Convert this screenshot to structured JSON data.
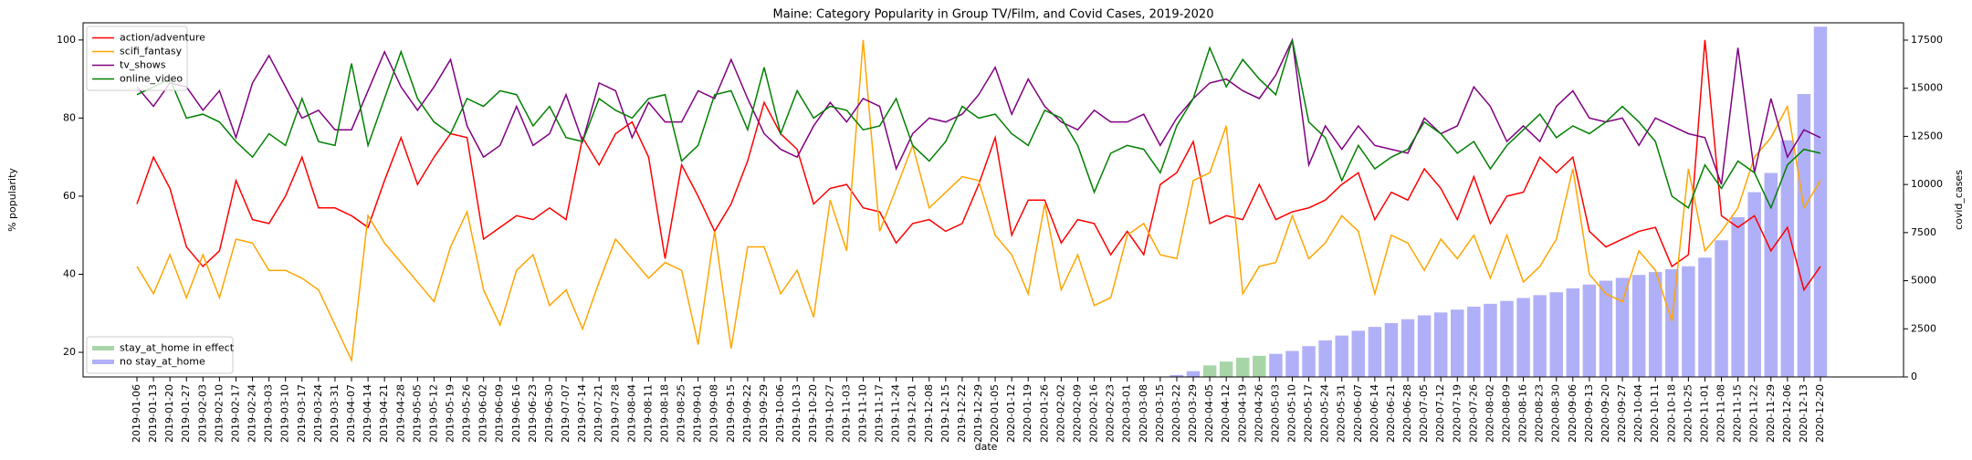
{
  "chart_data": {
    "type": "line",
    "title": "Maine: Category Popularity in Group TV/Film, and Covid Cases, 2019-2020",
    "x_label": "date",
    "y_label": "% popularity",
    "y2_label": "covid_cases",
    "categories": [
      "2019-01-06",
      "2019-01-13",
      "2019-01-20",
      "2019-01-27",
      "2019-02-03",
      "2019-02-10",
      "2019-02-17",
      "2019-02-24",
      "2019-03-03",
      "2019-03-10",
      "2019-03-17",
      "2019-03-24",
      "2019-03-31",
      "2019-04-07",
      "2019-04-14",
      "2019-04-21",
      "2019-04-28",
      "2019-05-05",
      "2019-05-12",
      "2019-05-19",
      "2019-05-26",
      "2019-06-02",
      "2019-06-09",
      "2019-06-16",
      "2019-06-23",
      "2019-06-30",
      "2019-07-07",
      "2019-07-14",
      "2019-07-21",
      "2019-07-28",
      "2019-08-04",
      "2019-08-11",
      "2019-08-18",
      "2019-08-25",
      "2019-09-01",
      "2019-09-08",
      "2019-09-15",
      "2019-09-22",
      "2019-09-29",
      "2019-10-06",
      "2019-10-13",
      "2019-10-20",
      "2019-10-27",
      "2019-11-03",
      "2019-11-10",
      "2019-11-17",
      "2019-11-24",
      "2019-12-01",
      "2019-12-08",
      "2019-12-15",
      "2019-12-22",
      "2019-12-29",
      "2020-01-05",
      "2020-01-12",
      "2020-01-19",
      "2020-01-26",
      "2020-02-02",
      "2020-02-09",
      "2020-02-16",
      "2020-02-23",
      "2020-03-01",
      "2020-03-08",
      "2020-03-15",
      "2020-03-22",
      "2020-03-29",
      "2020-04-05",
      "2020-04-12",
      "2020-04-19",
      "2020-04-26",
      "2020-05-03",
      "2020-05-10",
      "2020-05-17",
      "2020-05-24",
      "2020-05-31",
      "2020-06-07",
      "2020-06-14",
      "2020-06-21",
      "2020-06-28",
      "2020-07-05",
      "2020-07-12",
      "2020-07-19",
      "2020-07-26",
      "2020-08-02",
      "2020-08-09",
      "2020-08-16",
      "2020-08-23",
      "2020-08-30",
      "2020-09-06",
      "2020-09-13",
      "2020-09-20",
      "2020-09-27",
      "2020-10-04",
      "2020-10-11",
      "2020-10-18",
      "2020-10-25",
      "2020-11-01",
      "2020-11-08",
      "2020-11-15",
      "2020-11-22",
      "2020-11-29",
      "2020-12-06",
      "2020-12-13",
      "2020-12-20"
    ],
    "series": [
      {
        "name": "action/adventure",
        "color": "#ff0000",
        "type": "line",
        "values": [
          58,
          70,
          62,
          47,
          42,
          46,
          64,
          54,
          53,
          60,
          70,
          57,
          57,
          55,
          52,
          64,
          75,
          63,
          70,
          76,
          75,
          49,
          52,
          55,
          54,
          57,
          54,
          75,
          68,
          76,
          79,
          70,
          44,
          68,
          60,
          51,
          58,
          69,
          84,
          76,
          72,
          58,
          62,
          63,
          57,
          56,
          48,
          53,
          54,
          51,
          53,
          63,
          75,
          50,
          59,
          59,
          48,
          54,
          53,
          45,
          51,
          45,
          63,
          66,
          74,
          53,
          55,
          54,
          63,
          54,
          56,
          57,
          59,
          63,
          66,
          54,
          61,
          59,
          67,
          62,
          54,
          65,
          53,
          60,
          61,
          70,
          66,
          70,
          51,
          47,
          49,
          51,
          52,
          42,
          45,
          100,
          55,
          52,
          55,
          46,
          52,
          36,
          42
        ]
      },
      {
        "name": "scifi_fantasy",
        "color": "#ffa500",
        "type": "line",
        "values": [
          42,
          35,
          45,
          34,
          45,
          34,
          49,
          48,
          41,
          41,
          39,
          36,
          27,
          18,
          55,
          48,
          43,
          38,
          33,
          47,
          56,
          36,
          27,
          41,
          45,
          32,
          36,
          26,
          38,
          49,
          44,
          39,
          43,
          41,
          22,
          51,
          21,
          47,
          47,
          35,
          41,
          29,
          59,
          46,
          100,
          51,
          62,
          73,
          57,
          61,
          65,
          64,
          50,
          45,
          35,
          58,
          36,
          45,
          32,
          34,
          50,
          53,
          45,
          44,
          64,
          66,
          78,
          35,
          42,
          43,
          55,
          44,
          48,
          55,
          51,
          35,
          50,
          48,
          41,
          49,
          44,
          50,
          39,
          50,
          38,
          42,
          49,
          67,
          40,
          35,
          33,
          46,
          41,
          28,
          67,
          46,
          51,
          57,
          70,
          75,
          83,
          57,
          64
        ]
      },
      {
        "name": "tv_shows",
        "color": "#800080",
        "type": "line",
        "values": [
          88,
          83,
          89,
          88,
          82,
          87,
          75,
          89,
          96,
          88,
          80,
          82,
          77,
          77,
          87,
          97,
          88,
          82,
          88,
          95,
          78,
          70,
          73,
          83,
          73,
          76,
          86,
          74,
          89,
          87,
          75,
          84,
          79,
          79,
          87,
          85,
          95,
          85,
          76,
          72,
          70,
          78,
          84,
          79,
          85,
          83,
          67,
          76,
          80,
          79,
          81,
          86,
          93,
          81,
          90,
          83,
          79,
          77,
          82,
          79,
          79,
          81,
          73,
          80,
          85,
          89,
          90,
          87,
          85,
          91,
          100,
          68,
          78,
          72,
          78,
          73,
          72,
          71,
          80,
          76,
          78,
          88,
          83,
          74,
          78,
          74,
          83,
          87,
          80,
          79,
          80,
          73,
          80,
          78,
          76,
          75,
          63,
          98,
          66,
          85,
          70,
          77,
          75
        ]
      },
      {
        "name": "online_video",
        "color": "#008000",
        "type": "line",
        "values": [
          86,
          88,
          90,
          80,
          81,
          79,
          74,
          70,
          76,
          73,
          85,
          74,
          73,
          94,
          73,
          85,
          97,
          85,
          79,
          76,
          85,
          83,
          87,
          86,
          78,
          83,
          75,
          74,
          85,
          82,
          80,
          85,
          86,
          69,
          73,
          86,
          87,
          77,
          93,
          76,
          87,
          80,
          83,
          82,
          77,
          78,
          85,
          73,
          69,
          74,
          83,
          80,
          81,
          76,
          73,
          82,
          80,
          73,
          61,
          71,
          73,
          72,
          66,
          78,
          85,
          98,
          88,
          95,
          90,
          86,
          100,
          79,
          75,
          64,
          73,
          67,
          70,
          72,
          79,
          76,
          71,
          74,
          67,
          73,
          77,
          81,
          75,
          78,
          76,
          79,
          83,
          79,
          74,
          60,
          57,
          68,
          62,
          69,
          66,
          57,
          68,
          72,
          71
        ]
      },
      {
        "name": "stay_at_home in effect",
        "color": "#a8d5a8",
        "type": "bar",
        "axis": "y2",
        "values": [
          null,
          null,
          null,
          null,
          null,
          null,
          null,
          null,
          null,
          null,
          null,
          null,
          null,
          null,
          null,
          null,
          null,
          null,
          null,
          null,
          null,
          null,
          null,
          null,
          null,
          null,
          null,
          null,
          null,
          null,
          null,
          null,
          null,
          null,
          null,
          null,
          null,
          null,
          null,
          null,
          null,
          null,
          null,
          null,
          null,
          null,
          null,
          null,
          null,
          null,
          null,
          null,
          null,
          null,
          null,
          null,
          null,
          null,
          null,
          null,
          null,
          null,
          null,
          null,
          null,
          600,
          800,
          1000,
          1100,
          null,
          null,
          null,
          null,
          null,
          null,
          null,
          null,
          null,
          null,
          null,
          null,
          null,
          null,
          null,
          null,
          null,
          null,
          null,
          null,
          null,
          null,
          null,
          null,
          null,
          null,
          null,
          null,
          null,
          null,
          null,
          null,
          null,
          null
        ]
      },
      {
        "name": "no stay_at_home",
        "color": "#b0b0f8",
        "type": "bar",
        "axis": "y2",
        "values": [
          0,
          0,
          0,
          0,
          0,
          0,
          0,
          0,
          0,
          0,
          0,
          0,
          0,
          0,
          0,
          0,
          0,
          0,
          0,
          0,
          0,
          0,
          0,
          0,
          0,
          0,
          0,
          0,
          0,
          0,
          0,
          0,
          0,
          0,
          0,
          0,
          0,
          0,
          0,
          0,
          0,
          0,
          0,
          0,
          0,
          0,
          0,
          0,
          0,
          0,
          0,
          0,
          0,
          0,
          0,
          0,
          0,
          0,
          0,
          0,
          0,
          0,
          20,
          100,
          300,
          null,
          null,
          null,
          null,
          1200,
          1350,
          1600,
          1900,
          2150,
          2400,
          2600,
          2800,
          3000,
          3200,
          3350,
          3500,
          3650,
          3800,
          3950,
          4100,
          4250,
          4400,
          4600,
          4800,
          5000,
          5150,
          5300,
          5450,
          5600,
          5750,
          6200,
          7100,
          8300,
          9600,
          10600,
          12300,
          14700,
          18200
        ]
      }
    ],
    "ylim": [
      13.7,
      104.4
    ],
    "yticks": [
      20,
      40,
      60,
      80,
      100
    ],
    "y2lim": [
      0,
      18400
    ],
    "y2ticks": [
      0,
      2500,
      5000,
      7500,
      10000,
      12500,
      15000,
      17500
    ],
    "legend": "upper left",
    "legend2": "lower left",
    "grid": false
  }
}
